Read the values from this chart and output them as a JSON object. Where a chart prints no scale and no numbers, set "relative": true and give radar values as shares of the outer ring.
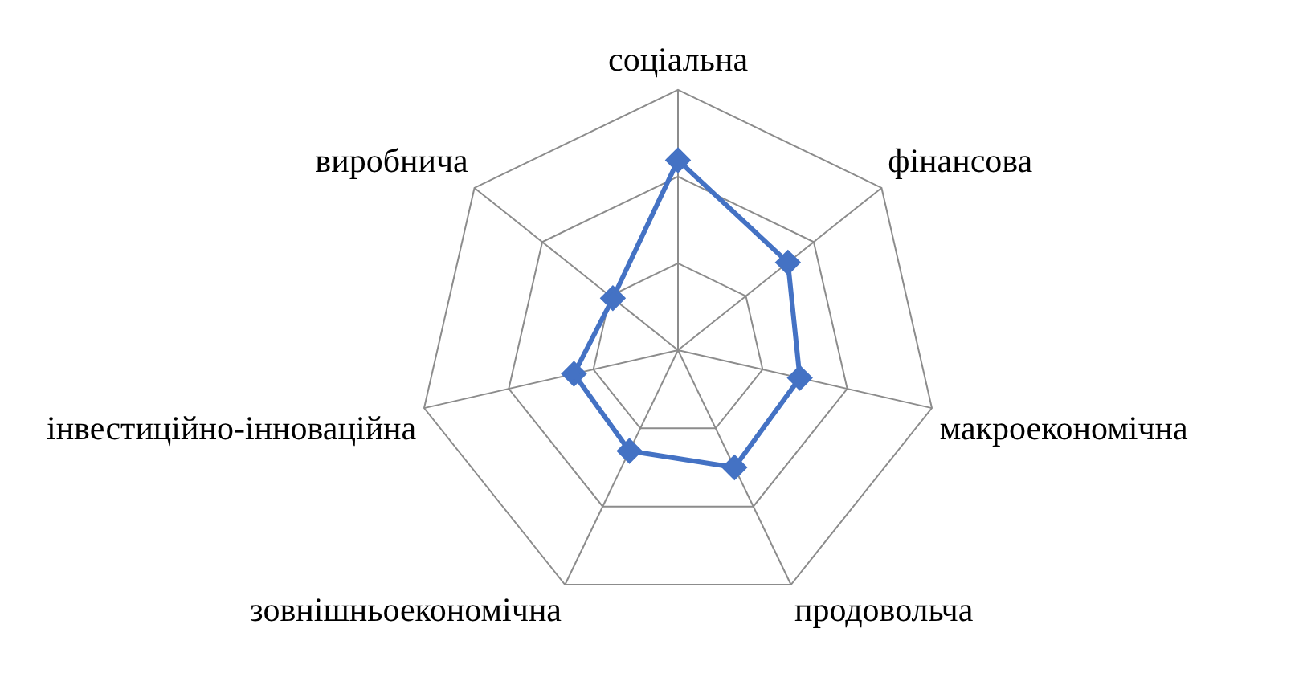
{
  "chart_data": {
    "type": "radar",
    "relative": true,
    "categories": [
      "соціальна",
      "фінансова",
      "макроекономічна",
      "продовольча",
      "зовнішньоекономічна",
      "інвестиційно-інноваційна",
      "виробнича"
    ],
    "series": [
      {
        "color": "#4472c4",
        "values": [
          0.73,
          0.54,
          0.48,
          0.5,
          0.43,
          0.41,
          0.32
        ]
      }
    ],
    "marker": "diamond",
    "legend": false,
    "grid": true
  }
}
